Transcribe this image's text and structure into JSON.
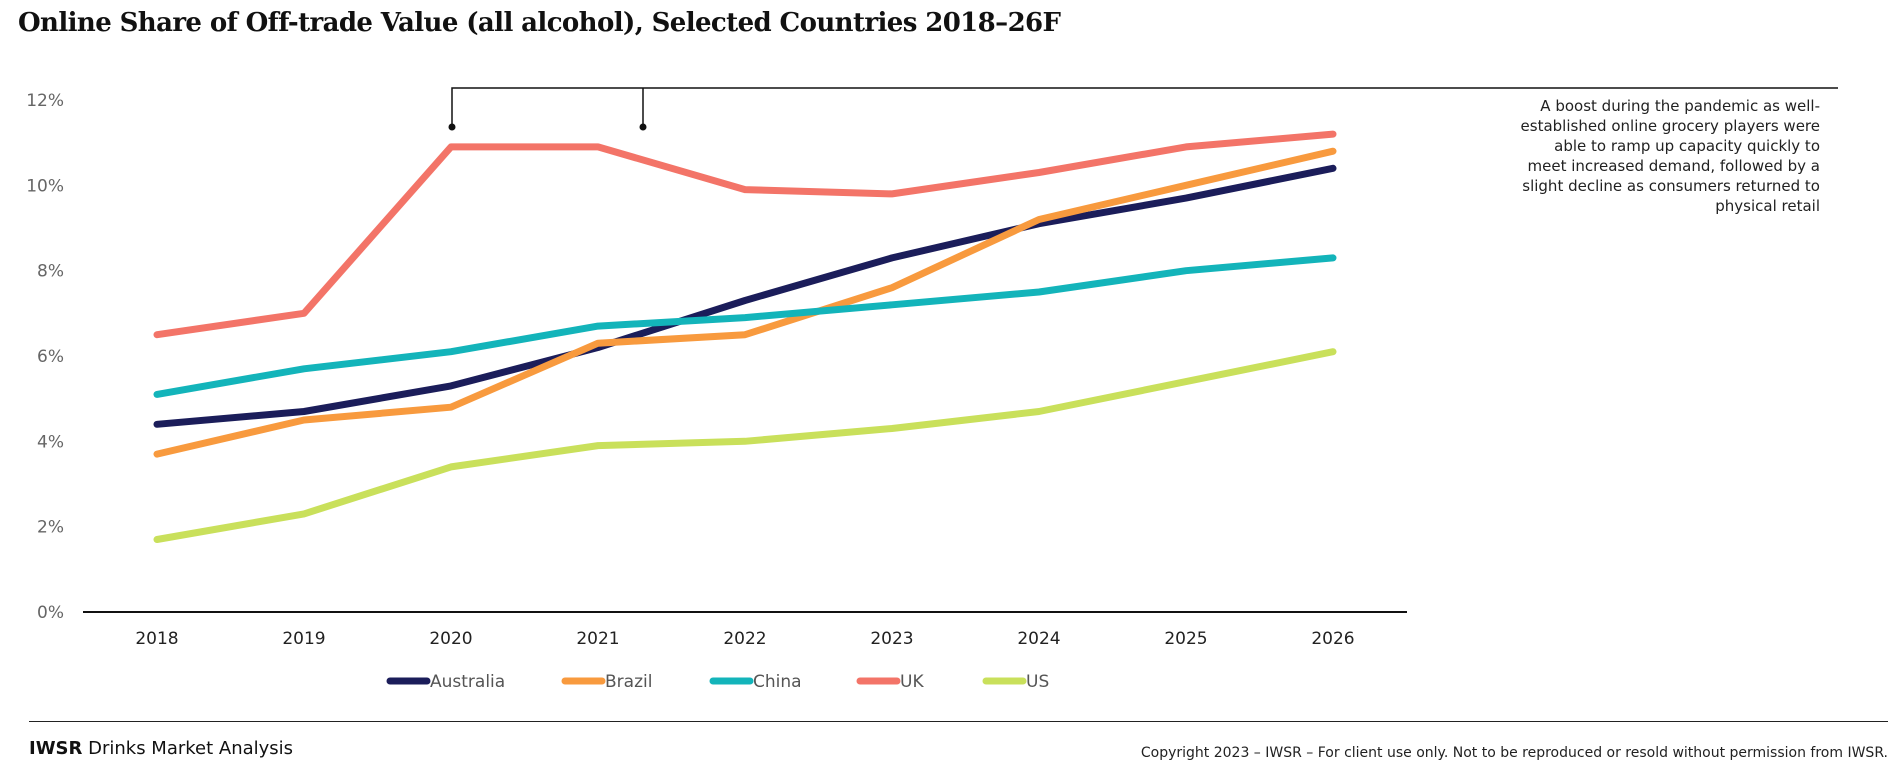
{
  "chart_data": {
    "type": "line",
    "title": "Online Share of Off-trade Value (all alcohol), Selected Countries 2018–26F",
    "xlabel": "",
    "ylabel": "",
    "x": [
      "2018",
      "2019",
      "2020",
      "2021",
      "2022",
      "2023",
      "2024",
      "2025",
      "2026"
    ],
    "ylim": [
      0,
      12
    ],
    "yticks": [
      0,
      2,
      4,
      6,
      8,
      10,
      12
    ],
    "ytick_labels": [
      "0%",
      "2%",
      "4%",
      "6%",
      "8%",
      "10%",
      "12%"
    ],
    "grid": false,
    "legend_position": "bottom",
    "series": [
      {
        "name": "Australia",
        "color": "#1b1d5a",
        "values": [
          4.4,
          4.7,
          5.3,
          6.2,
          7.3,
          8.3,
          9.1,
          9.7,
          10.4
        ]
      },
      {
        "name": "Brazil",
        "color": "#f89a3e",
        "values": [
          3.7,
          4.5,
          4.8,
          6.3,
          6.5,
          7.6,
          9.2,
          10.0,
          10.8
        ]
      },
      {
        "name": "China",
        "color": "#13b4ba",
        "values": [
          5.1,
          5.7,
          6.1,
          6.7,
          6.9,
          7.2,
          7.5,
          8.0,
          8.3
        ]
      },
      {
        "name": "UK",
        "color": "#f37468",
        "values": [
          6.5,
          7.0,
          10.9,
          10.9,
          9.9,
          9.8,
          10.3,
          10.9,
          11.2
        ]
      },
      {
        "name": "US",
        "color": "#c9e05b",
        "values": [
          1.7,
          2.3,
          3.4,
          3.9,
          4.0,
          4.3,
          4.7,
          5.4,
          6.1
        ]
      }
    ],
    "annotations": [
      {
        "text": "A boost during the pandemic as well-established online grocery players were able to ramp up capacity quickly to meet increased demand, followed by a slight decline as consumers returned to physical retail",
        "points_to_x": [
          "2020",
          "2021"
        ],
        "position": "top-right"
      }
    ]
  },
  "footer": {
    "brand_bold": "IWSR",
    "brand_rest": " Drinks Market Analysis",
    "copyright": "Copyright 2023 – IWSR – For client use only. Not to be reproduced or resold without permission from IWSR."
  }
}
